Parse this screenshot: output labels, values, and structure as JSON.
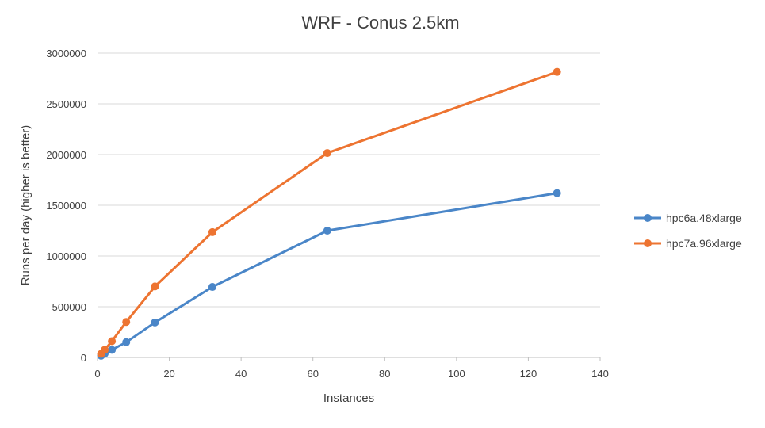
{
  "chart_data": {
    "type": "line",
    "title": "WRF - Conus 2.5km",
    "xlabel": "Instances",
    "ylabel": "Runs per day (higher is better)",
    "xlim": [
      0,
      140
    ],
    "ylim": [
      0,
      3000000
    ],
    "x_ticks": [
      0,
      20,
      40,
      60,
      80,
      100,
      120,
      140
    ],
    "y_ticks": [
      0,
      500000,
      1000000,
      1500000,
      2000000,
      2500000,
      3000000
    ],
    "grid": "horizontal",
    "legend_position": "right",
    "series": [
      {
        "name": "hpc6a.48xlarge",
        "color": "#4a86c8",
        "x": [
          1,
          2,
          4,
          8,
          16,
          32,
          64,
          128
        ],
        "values": [
          17000,
          38000,
          75000,
          150000,
          345000,
          695000,
          1250000,
          1620000
        ]
      },
      {
        "name": "hpc7a.96xlarge",
        "color": "#ed7431",
        "x": [
          1,
          2,
          4,
          8,
          16,
          32,
          64,
          128
        ],
        "values": [
          35000,
          75000,
          160000,
          350000,
          700000,
          1235000,
          2015000,
          2815000
        ]
      }
    ]
  }
}
